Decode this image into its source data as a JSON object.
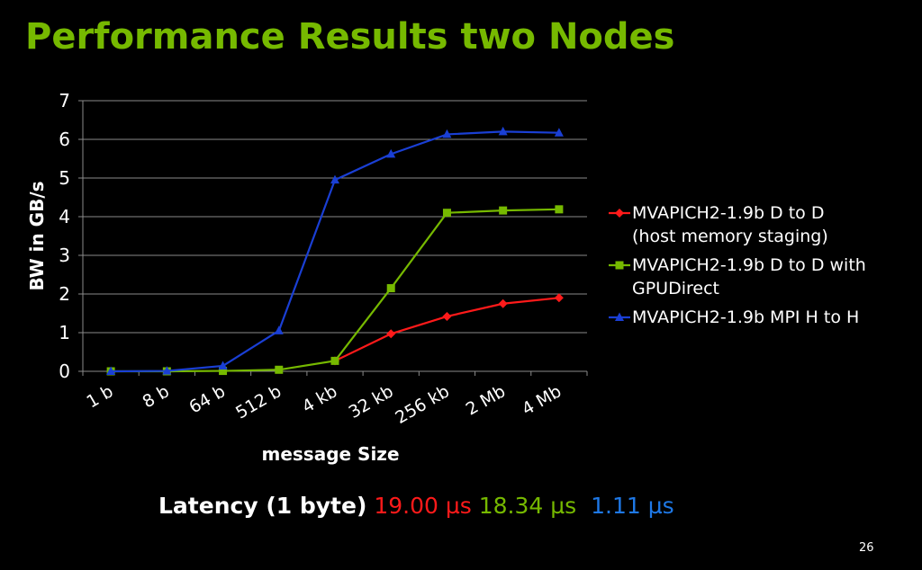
{
  "slide": {
    "title": "Performance Results two Nodes",
    "page_number": "26"
  },
  "latency": {
    "label": "Latency (1 byte)",
    "values": [
      {
        "text": "19.00 µs",
        "color": "#ff1a1a"
      },
      {
        "text": "18.34 µs",
        "color": "#76b900"
      },
      {
        "text": "1.11 µs",
        "color": "#1e78e6"
      }
    ]
  },
  "chart_data": {
    "type": "line",
    "title": "",
    "xlabel": "message Size",
    "ylabel": "BW in GB/s",
    "ylim": [
      0,
      7
    ],
    "yticks": [
      "0",
      "1",
      "2",
      "3",
      "4",
      "5",
      "6",
      "7"
    ],
    "grid": true,
    "legend_position": "right",
    "categories": [
      "1 b",
      "8 b",
      "64 b",
      "512 b",
      "4 kb",
      "32 kb",
      "256 kb",
      "2 Mb",
      "4 Mb"
    ],
    "series": [
      {
        "name": "MVAPICH2-1.9b D to D\n(host memory staging)",
        "color": "#ff1a1a",
        "marker": "diamond",
        "values": [
          null,
          null,
          null,
          null,
          0.27,
          0.97,
          1.42,
          1.75,
          1.9
        ]
      },
      {
        "name": "MVAPICH2-1.9b D to D with\nGPUDirect",
        "color": "#76b900",
        "marker": "square",
        "values": [
          0.0,
          0.0,
          0.01,
          0.04,
          0.27,
          2.15,
          4.1,
          4.16,
          4.19
        ]
      },
      {
        "name": "MVAPICH2-1.9b MPI H to H",
        "color": "#1a3fd4",
        "marker": "triangle",
        "values": [
          0.0,
          0.01,
          0.14,
          1.05,
          4.95,
          5.62,
          6.13,
          6.2,
          6.17
        ]
      }
    ]
  }
}
